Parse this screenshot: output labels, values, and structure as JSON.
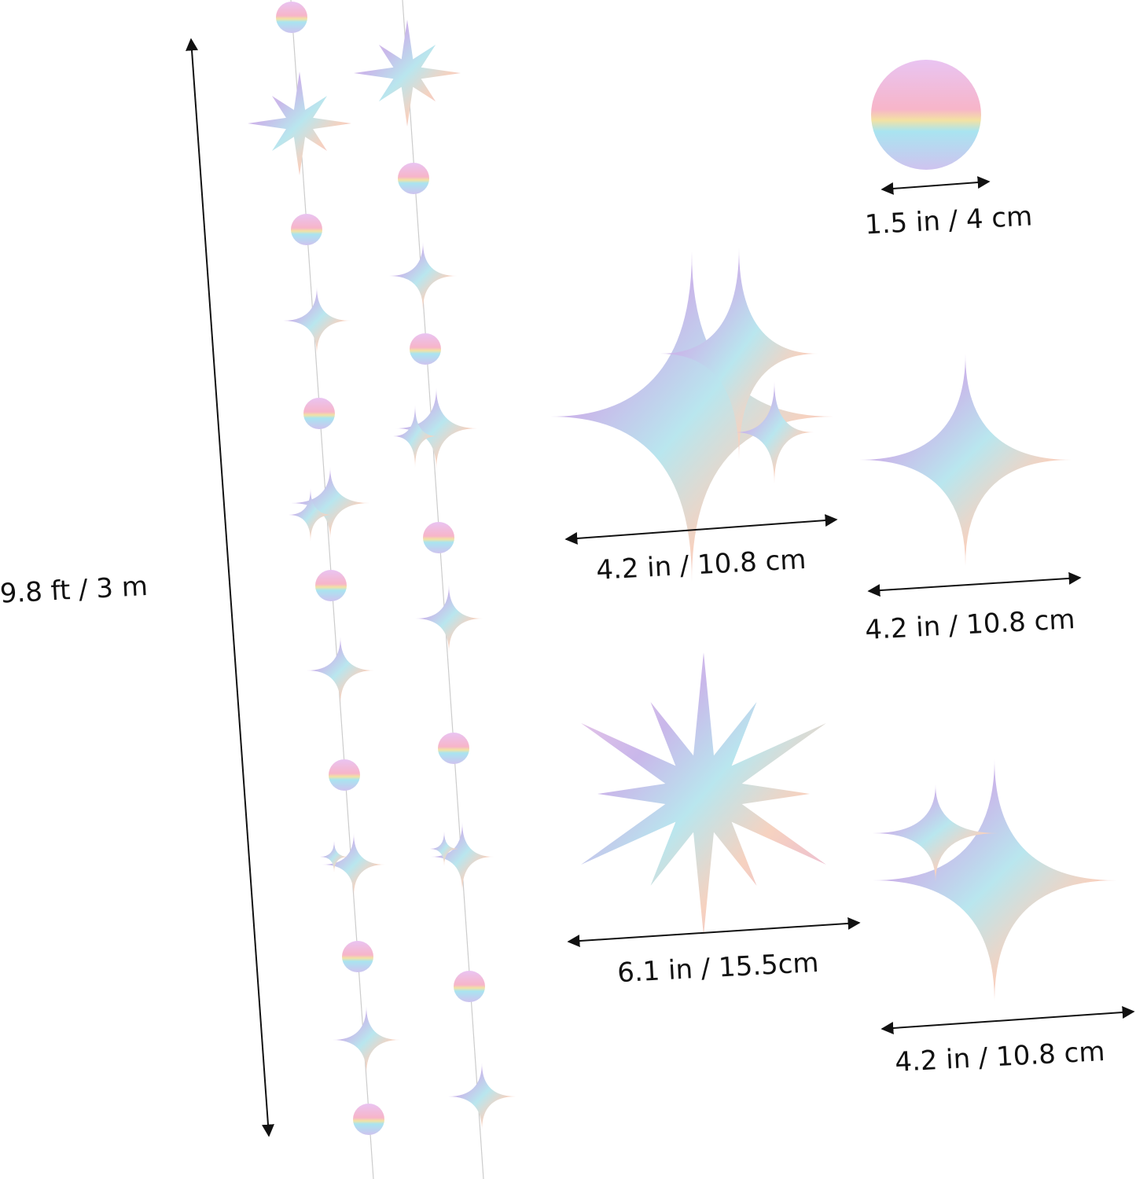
{
  "dimensions": {
    "garland_length": "9.8 ft / 3 m",
    "circle": "1.5 in / 4 cm",
    "star_cluster": "4.2 in / 10.8 cm",
    "star_single": "4.2 in / 10.8 cm",
    "starburst": "6.1 in / 15.5cm",
    "star_pair": "4.2 in / 10.8 cm"
  }
}
